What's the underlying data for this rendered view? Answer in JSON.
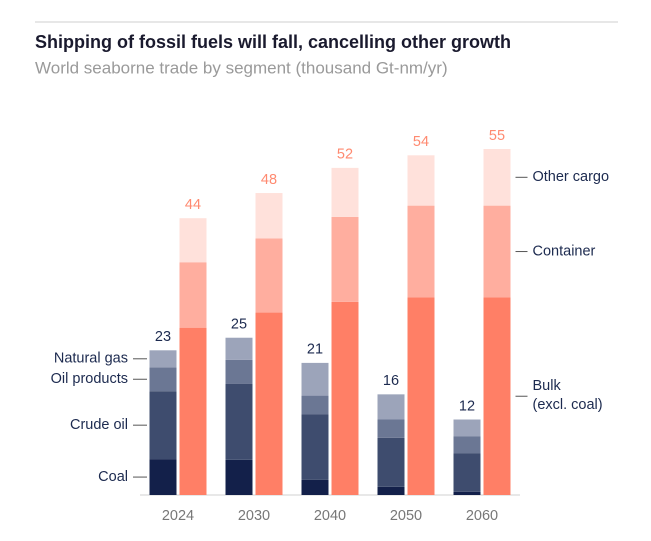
{
  "chart_data": {
    "type": "bar",
    "title": "Shipping of fossil fuels will fall, cancelling other growth",
    "subtitle": "World seaborne trade by segment (thousand Gt-nm/yr)",
    "categories": [
      "2024",
      "2030",
      "2040",
      "2050",
      "2060"
    ],
    "series": [
      {
        "name": "Coal",
        "color": "#13204a",
        "stack": 0,
        "values": [
          5.7,
          5.6,
          2.4,
          1.3,
          0.5
        ]
      },
      {
        "name": "Crude oil",
        "color": "#3e4c6e",
        "stack": 0,
        "values": [
          10.8,
          12.1,
          10.4,
          7.8,
          6.1
        ]
      },
      {
        "name": "Oil products",
        "color": "#6b7794",
        "stack": 0,
        "values": [
          3.8,
          3.8,
          3.0,
          2.9,
          2.7
        ]
      },
      {
        "name": "Natural gas",
        "color": "#9ca4ba",
        "stack": 0,
        "values": [
          2.7,
          3.5,
          5.2,
          4.0,
          2.7
        ]
      },
      {
        "name": "Bulk (excl. coal)",
        "color": "#ff7f66",
        "stack": 1,
        "values": [
          26.6,
          29.0,
          30.7,
          31.4,
          31.4
        ]
      },
      {
        "name": "Container",
        "color": "#ffae9f",
        "stack": 1,
        "values": [
          10.4,
          11.8,
          13.5,
          14.6,
          14.6
        ]
      },
      {
        "name": "Other cargo",
        "color": "#ffe1db",
        "stack": 1,
        "values": [
          7.0,
          7.2,
          7.8,
          8.0,
          9.0
        ]
      }
    ],
    "stack_totals": [
      [
        23,
        25,
        21,
        16,
        12
      ],
      [
        44,
        48,
        52,
        54,
        55
      ]
    ],
    "stack_total_colors": [
      "#1c2a4f",
      "#ff8a70"
    ]
  }
}
